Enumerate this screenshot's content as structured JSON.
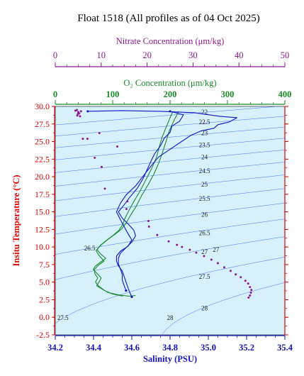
{
  "title": "Float 1518  (All profiles as of 04 Oct 2025)",
  "chart_data": {
    "type": "line",
    "title": "Float 1518  (All profiles as of 04 Oct 2025)",
    "colors": {
      "salinity": "#1414c8",
      "oxygen": "#1a8a2a",
      "nitrate": "#8c1a8c",
      "temperature_axis": "#e00000",
      "isopycnal": "#3c64ff",
      "plot_background": "#d6f0fc"
    },
    "axes": {
      "salinity": {
        "label": "Salinity (PSU)",
        "range": [
          34.2,
          35.4
        ],
        "ticks": [
          "34.2",
          "34.4",
          "34.6",
          "34.8",
          "35.0",
          "35.2",
          "35.4"
        ],
        "position": "bottom"
      },
      "oxygen": {
        "label": "O₂ Concentration (μm/kg)",
        "range": [
          0,
          400
        ],
        "ticks": [
          "0",
          "100",
          "200",
          "300",
          "400"
        ],
        "position": "top-inner"
      },
      "nitrate": {
        "label": "Nitrate Concentration (μm/kg)",
        "range": [
          0,
          50
        ],
        "ticks": [
          "0",
          "10",
          "20",
          "30",
          "40",
          "50"
        ],
        "position": "top-outer"
      },
      "temperature": {
        "label": "Insitu Temperature (°C)",
        "range": [
          -2.5,
          30.0
        ],
        "ticks": [
          "-2.5",
          "0.0",
          "2.5",
          "5.0",
          "7.5",
          "10.0",
          "12.5",
          "15.0",
          "17.5",
          "20.0",
          "22.5",
          "25.0",
          "27.5",
          "30.0"
        ],
        "position": "left"
      }
    },
    "isopycnal_labels": [
      "22",
      "22.5",
      "23",
      "23.5",
      "24",
      "24.5",
      "25",
      "25.5",
      "26",
      "26.5",
      "26.5",
      "27",
      "27",
      "27.5",
      "27.5",
      "28",
      "28"
    ],
    "isopycnal_label_positions": [
      {
        "label": "22",
        "s": 34.98,
        "t": 29.2
      },
      {
        "label": "22.5",
        "s": 34.98,
        "t": 27.8
      },
      {
        "label": "23",
        "s": 34.98,
        "t": 26.2
      },
      {
        "label": "23.5",
        "s": 34.98,
        "t": 24.5
      },
      {
        "label": "24",
        "s": 34.98,
        "t": 22.8
      },
      {
        "label": "24.5",
        "s": 34.98,
        "t": 20.8
      },
      {
        "label": "25",
        "s": 34.98,
        "t": 18.9
      },
      {
        "label": "25.5",
        "s": 34.98,
        "t": 16.9
      },
      {
        "label": "26",
        "s": 34.98,
        "t": 14.6
      },
      {
        "label": "26.5",
        "s": 34.98,
        "t": 12.0
      },
      {
        "label": "26.5",
        "s": 34.38,
        "t": 9.8
      },
      {
        "label": "27",
        "s": 34.98,
        "t": 9.3
      },
      {
        "label": "27",
        "s": 35.04,
        "t": 9.6
      },
      {
        "label": "27.5",
        "s": 34.98,
        "t": 5.8
      },
      {
        "label": "27.5",
        "s": 34.24,
        "t": -0.1
      },
      {
        "label": "28",
        "s": 34.98,
        "t": 1.3
      },
      {
        "label": "28",
        "s": 34.8,
        "t": -0.1
      }
    ],
    "series": [
      {
        "name": "Salinity",
        "axis": "salinity",
        "profiles": [
          [
            [
              34.37,
              29.3
            ],
            [
              34.55,
              29.4
            ],
            [
              34.75,
              29.3
            ],
            [
              34.93,
              29.1
            ],
            [
              34.98,
              28.9
            ],
            [
              35.06,
              28.6
            ],
            [
              35.15,
              28.4
            ],
            [
              35.11,
              27.8
            ],
            [
              35.05,
              27.4
            ],
            [
              35.03,
              26.9
            ],
            [
              34.96,
              26.5
            ],
            [
              34.91,
              25.9
            ],
            [
              34.86,
              25.0
            ],
            [
              34.8,
              23.9
            ],
            [
              34.74,
              22.8
            ],
            [
              34.7,
              21.5
            ],
            [
              34.66,
              20.1
            ],
            [
              34.62,
              18.7
            ],
            [
              34.57,
              17.4
            ],
            [
              34.54,
              16.2
            ],
            [
              34.52,
              15.0
            ],
            [
              34.54,
              13.9
            ],
            [
              34.56,
              12.9
            ],
            [
              34.58,
              11.9
            ],
            [
              34.6,
              11.0
            ],
            [
              34.58,
              10.1
            ],
            [
              34.54,
              9.4
            ],
            [
              34.52,
              8.7
            ],
            [
              34.52,
              8.0
            ],
            [
              34.53,
              7.3
            ],
            [
              34.55,
              6.6
            ],
            [
              34.56,
              5.8
            ],
            [
              34.57,
              5.0
            ],
            [
              34.58,
              4.2
            ],
            [
              34.59,
              3.5
            ],
            [
              34.6,
              2.9
            ]
          ],
          [
            [
              34.8,
              29.3
            ],
            [
              34.87,
              28.8
            ],
            [
              34.85,
              27.9
            ],
            [
              34.81,
              27.2
            ],
            [
              34.8,
              26.3
            ],
            [
              34.77,
              25.5
            ],
            [
              34.75,
              24.4
            ],
            [
              34.72,
              23.3
            ],
            [
              34.7,
              22.2
            ],
            [
              34.68,
              21.0
            ],
            [
              34.66,
              19.8
            ],
            [
              34.63,
              18.4
            ],
            [
              34.59,
              17.1
            ],
            [
              34.56,
              16.0
            ],
            [
              34.53,
              15.0
            ],
            [
              34.55,
              14.1
            ],
            [
              34.58,
              13.3
            ],
            [
              34.61,
              12.4
            ],
            [
              34.62,
              11.6
            ],
            [
              34.6,
              10.7
            ],
            [
              34.57,
              9.9
            ],
            [
              34.54,
              9.1
            ],
            [
              34.53,
              8.4
            ],
            [
              34.53,
              7.6
            ],
            [
              34.54,
              6.9
            ],
            [
              34.55,
              6.1
            ],
            [
              34.55,
              5.3
            ],
            [
              34.56,
              4.5
            ],
            [
              34.57,
              3.8
            ]
          ]
        ]
      },
      {
        "name": "Oxygen",
        "axis": "oxygen",
        "profiles": [
          [
            [
              205,
              29.3
            ],
            [
              200,
              28.4
            ],
            [
              193,
              27.0
            ],
            [
              186,
              25.6
            ],
            [
              181,
              24.2
            ],
            [
              176,
              22.7
            ],
            [
              168,
              21.2
            ],
            [
              158,
              19.6
            ],
            [
              148,
              18.0
            ],
            [
              137,
              16.5
            ],
            [
              127,
              15.0
            ],
            [
              121,
              14.0
            ],
            [
              117,
              13.1
            ],
            [
              110,
              12.3
            ],
            [
              100,
              11.6
            ],
            [
              90,
              11.0
            ],
            [
              78,
              10.2
            ],
            [
              73,
              9.6
            ],
            [
              79,
              9.0
            ],
            [
              88,
              8.4
            ],
            [
              78,
              7.8
            ],
            [
              70,
              7.3
            ],
            [
              66,
              6.8
            ],
            [
              72,
              6.3
            ],
            [
              80,
              5.6
            ],
            [
              76,
              5.0
            ],
            [
              72,
              4.5
            ],
            [
              82,
              4.0
            ],
            [
              93,
              3.5
            ],
            [
              110,
              3.2
            ],
            [
              128,
              3.0
            ],
            [
              140,
              3.1
            ]
          ],
          [
            [
              215,
              29.3
            ],
            [
              208,
              28.2
            ],
            [
              199,
              26.6
            ],
            [
              193,
              25.0
            ],
            [
              187,
              23.5
            ],
            [
              180,
              21.9
            ],
            [
              172,
              20.4
            ],
            [
              162,
              18.9
            ],
            [
              151,
              17.4
            ],
            [
              141,
              15.8
            ],
            [
              131,
              14.5
            ],
            [
              124,
              13.5
            ],
            [
              116,
              12.6
            ],
            [
              104,
              11.8
            ],
            [
              92,
              11.1
            ],
            [
              80,
              10.3
            ],
            [
              71,
              9.5
            ],
            [
              76,
              8.8
            ],
            [
              85,
              8.0
            ],
            [
              75,
              7.4
            ],
            [
              68,
              6.8
            ],
            [
              69,
              6.2
            ],
            [
              74,
              5.6
            ],
            [
              70,
              5.0
            ],
            [
              76,
              4.4
            ],
            [
              86,
              3.8
            ],
            [
              100,
              3.3
            ],
            [
              118,
              3.0
            ]
          ]
        ]
      },
      {
        "name": "Nitrate",
        "axis": "nitrate",
        "points": [
          [
            4.4,
            29.4
          ],
          [
            4.7,
            29.5
          ],
          [
            5.0,
            29.2
          ],
          [
            4.9,
            28.9
          ],
          [
            5.2,
            29.0
          ],
          [
            5.6,
            29.3
          ],
          [
            4.8,
            28.7
          ],
          [
            5.4,
            28.6
          ],
          [
            9.6,
            26.2
          ],
          [
            6.0,
            25.4
          ],
          [
            7.0,
            25.4
          ],
          [
            13.5,
            24.3
          ],
          [
            8.6,
            22.7
          ],
          [
            10.1,
            21.4
          ],
          [
            10.8,
            18.3
          ],
          [
            15.7,
            16.5
          ],
          [
            15.5,
            15.4
          ],
          [
            20.3,
            13.7
          ],
          [
            20.4,
            12.9
          ],
          [
            22.2,
            11.7
          ],
          [
            24.7,
            10.8
          ],
          [
            26.5,
            10.3
          ],
          [
            27.6,
            10.0
          ],
          [
            29.3,
            9.6
          ],
          [
            30.7,
            9.2
          ],
          [
            32.4,
            8.7
          ],
          [
            34.0,
            8.2
          ],
          [
            35.4,
            7.7
          ],
          [
            36.8,
            7.1
          ],
          [
            38.2,
            6.6
          ],
          [
            39.3,
            6.1
          ],
          [
            40.4,
            5.7
          ],
          [
            41.4,
            5.2
          ],
          [
            42.0,
            4.8
          ],
          [
            42.4,
            4.3
          ],
          [
            42.7,
            3.9
          ],
          [
            42.6,
            3.5
          ],
          [
            42.4,
            3.1
          ],
          [
            42.1,
            2.8
          ]
        ]
      }
    ]
  }
}
